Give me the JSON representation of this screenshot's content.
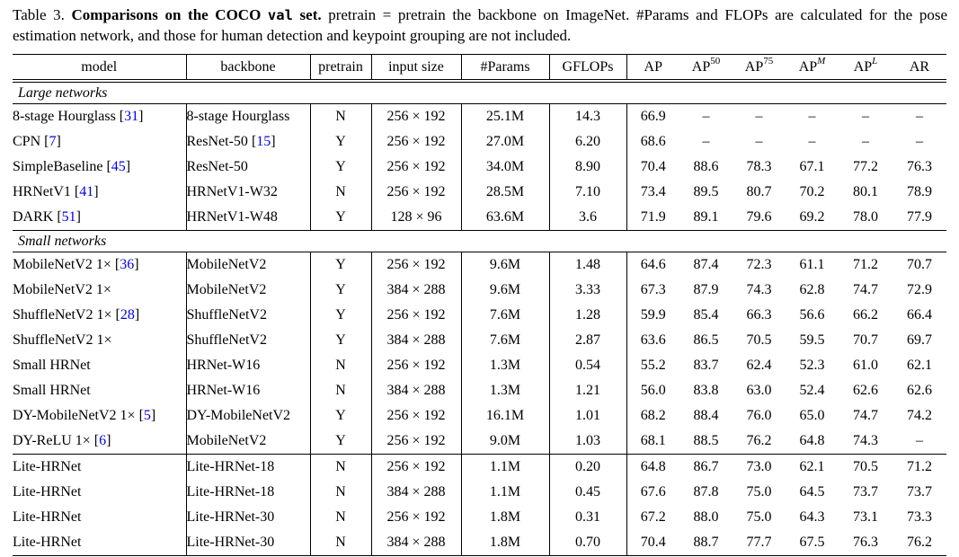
{
  "page": {
    "background": "#ffffff",
    "text_color": "#000000",
    "citation_color": "#0000EE"
  },
  "caption": {
    "parts": [
      {
        "style": "normal",
        "name": "caption-label",
        "text": "Table 3. "
      },
      {
        "style": "bold",
        "name": "caption-title",
        "text": "Comparisons on the COCO "
      },
      {
        "style": "bold-mono",
        "name": "caption-title-mono",
        "text": "val"
      },
      {
        "style": "bold",
        "name": "caption-title",
        "text": " set."
      },
      {
        "style": "normal",
        "name": "caption-body",
        "text": " pretrain = pretrain the backbone on ImageNet. #Params and FLOPs are calculated for the pose estimation network, and those for human detection and keypoint grouping are not included."
      }
    ]
  },
  "table": {
    "columns": [
      {
        "key": "model",
        "label": "model"
      },
      {
        "key": "backbone",
        "label": "backbone"
      },
      {
        "key": "pretrain",
        "label": "pretrain"
      },
      {
        "key": "input-size",
        "label": "input size"
      },
      {
        "key": "params",
        "label": "#Params"
      },
      {
        "key": "gflops",
        "label": "GFLOPs"
      },
      {
        "key": "ap",
        "label": "AP"
      },
      {
        "key": "ap50",
        "label": "AP",
        "sup": "50"
      },
      {
        "key": "ap75",
        "label": "AP",
        "sup": "75"
      },
      {
        "key": "apm",
        "label": "AP",
        "sup": "M",
        "sup_italic": true
      },
      {
        "key": "apl",
        "label": "AP",
        "sup": "L",
        "sup_italic": true
      },
      {
        "key": "ar",
        "label": "AR"
      }
    ],
    "sections": [
      {
        "title": "Large networks",
        "groups": [
          [
            {
              "model": {
                "name": "8-stage Hourglass",
                "cite": "31"
              },
              "backbone": {
                "name": "8-stage Hourglass"
              },
              "pretrain": "N",
              "input_size": "256 × 192",
              "params": "25.1M",
              "gflops": "14.3",
              "metrics": [
                "66.9",
                "–",
                "–",
                "–",
                "–",
                "–"
              ]
            },
            {
              "model": {
                "name": "CPN",
                "cite": "7"
              },
              "backbone": {
                "name": "ResNet-50",
                "cite": "15"
              },
              "pretrain": "Y",
              "input_size": "256 × 192",
              "params": "27.0M",
              "gflops": "6.20",
              "metrics": [
                "68.6",
                "–",
                "–",
                "–",
                "–",
                "–"
              ]
            },
            {
              "model": {
                "name": "SimpleBaseline",
                "cite": "45"
              },
              "backbone": {
                "name": "ResNet-50"
              },
              "pretrain": "Y",
              "input_size": "256 × 192",
              "params": "34.0M",
              "gflops": "8.90",
              "metrics": [
                "70.4",
                "88.6",
                "78.3",
                "67.1",
                "77.2",
                "76.3"
              ]
            },
            {
              "model": {
                "name": "HRNetV1",
                "cite": "41"
              },
              "backbone": {
                "name": "HRNetV1-W32"
              },
              "pretrain": "N",
              "input_size": "256 × 192",
              "params": "28.5M",
              "gflops": "7.10",
              "metrics": [
                "73.4",
                "89.5",
                "80.7",
                "70.2",
                "80.1",
                "78.9"
              ]
            },
            {
              "model": {
                "name": "DARK",
                "cite": "51"
              },
              "backbone": {
                "name": "HRNetV1-W48"
              },
              "pretrain": "Y",
              "input_size": "128 × 96",
              "params": "63.6M",
              "gflops": "3.6",
              "metrics": [
                "71.9",
                "89.1",
                "79.6",
                "69.2",
                "78.0",
                "77.9"
              ]
            }
          ]
        ]
      },
      {
        "title": "Small networks",
        "groups": [
          [
            {
              "model": {
                "name": "MobileNetV2 1×",
                "cite": "36"
              },
              "backbone": {
                "name": "MobileNetV2"
              },
              "pretrain": "Y",
              "input_size": "256 × 192",
              "params": "9.6M",
              "gflops": "1.48",
              "metrics": [
                "64.6",
                "87.4",
                "72.3",
                "61.1",
                "71.2",
                "70.7"
              ]
            },
            {
              "model": {
                "name": "MobileNetV2 1×"
              },
              "backbone": {
                "name": "MobileNetV2"
              },
              "pretrain": "Y",
              "input_size": "384 × 288",
              "params": "9.6M",
              "gflops": "3.33",
              "metrics": [
                "67.3",
                "87.9",
                "74.3",
                "62.8",
                "74.7",
                "72.9"
              ]
            },
            {
              "model": {
                "name": "ShuffleNetV2 1×",
                "cite": "28"
              },
              "backbone": {
                "name": "ShuffleNetV2"
              },
              "pretrain": "Y",
              "input_size": "256 × 192",
              "params": "7.6M",
              "gflops": "1.28",
              "metrics": [
                "59.9",
                "85.4",
                "66.3",
                "56.6",
                "66.2",
                "66.4"
              ]
            },
            {
              "model": {
                "name": "ShuffleNetV2 1×"
              },
              "backbone": {
                "name": "ShuffleNetV2"
              },
              "pretrain": "Y",
              "input_size": "384 × 288",
              "params": "7.6M",
              "gflops": "2.87",
              "metrics": [
                "63.6",
                "86.5",
                "70.5",
                "59.5",
                "70.7",
                "69.7"
              ]
            },
            {
              "model": {
                "name": "Small HRNet"
              },
              "backbone": {
                "name": "HRNet-W16"
              },
              "pretrain": "N",
              "input_size": "256 × 192",
              "params": "1.3M",
              "gflops": "0.54",
              "metrics": [
                "55.2",
                "83.7",
                "62.4",
                "52.3",
                "61.0",
                "62.1"
              ]
            },
            {
              "model": {
                "name": "Small HRNet"
              },
              "backbone": {
                "name": "HRNet-W16"
              },
              "pretrain": "N",
              "input_size": "384 × 288",
              "params": "1.3M",
              "gflops": "1.21",
              "metrics": [
                "56.0",
                "83.8",
                "63.0",
                "52.4",
                "62.6",
                "62.6"
              ]
            },
            {
              "model": {
                "name": "DY-MobileNetV2 1×",
                "cite": "5"
              },
              "backbone": {
                "name": "DY-MobileNetV2"
              },
              "pretrain": "Y",
              "input_size": "256 × 192",
              "params": "16.1M",
              "gflops": "1.01",
              "metrics": [
                "68.2",
                "88.4",
                "76.0",
                "65.0",
                "74.7",
                "74.2"
              ]
            },
            {
              "model": {
                "name": "DY-ReLU 1×",
                "cite": "6"
              },
              "backbone": {
                "name": "MobileNetV2"
              },
              "pretrain": "Y",
              "input_size": "256 × 192",
              "params": "9.0M",
              "gflops": "1.03",
              "metrics": [
                "68.1",
                "88.5",
                "76.2",
                "64.8",
                "74.3",
                "–"
              ]
            }
          ],
          [
            {
              "model": {
                "name": "Lite-HRNet"
              },
              "backbone": {
                "name": "Lite-HRNet-18"
              },
              "pretrain": "N",
              "input_size": "256 × 192",
              "params": "1.1M",
              "gflops": "0.20",
              "metrics": [
                "64.8",
                "86.7",
                "73.0",
                "62.1",
                "70.5",
                "71.2"
              ]
            },
            {
              "model": {
                "name": "Lite-HRNet"
              },
              "backbone": {
                "name": "Lite-HRNet-18"
              },
              "pretrain": "N",
              "input_size": "384 × 288",
              "params": "1.1M",
              "gflops": "0.45",
              "metrics": [
                "67.6",
                "87.8",
                "75.0",
                "64.5",
                "73.7",
                "73.7"
              ]
            },
            {
              "model": {
                "name": "Lite-HRNet"
              },
              "backbone": {
                "name": "Lite-HRNet-30"
              },
              "pretrain": "N",
              "input_size": "256 × 192",
              "params": "1.8M",
              "gflops": "0.31",
              "metrics": [
                "67.2",
                "88.0",
                "75.0",
                "64.3",
                "73.1",
                "73.3"
              ]
            },
            {
              "model": {
                "name": "Lite-HRNet"
              },
              "backbone": {
                "name": "Lite-HRNet-30"
              },
              "pretrain": "N",
              "input_size": "384 × 288",
              "params": "1.8M",
              "gflops": "0.70",
              "metrics": [
                "70.4",
                "88.7",
                "77.7",
                "67.5",
                "76.3",
                "76.2"
              ]
            }
          ]
        ]
      }
    ]
  }
}
